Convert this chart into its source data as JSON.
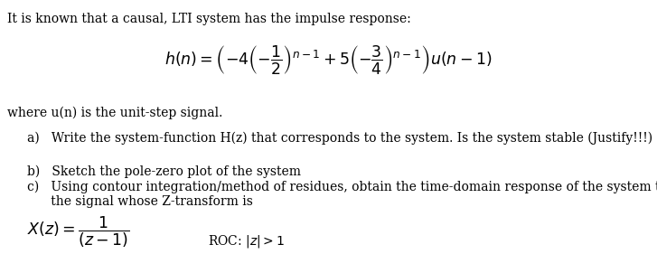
{
  "bg_color": "#ffffff",
  "text_color": "#000000",
  "figsize": [
    7.27,
    3.02
  ],
  "dpi": 100,
  "intro_text": "It is known that a causal, LTI system has the impulse response:",
  "where_text": "where u(n) is the unit-step signal.",
  "part_a": "a)   Write the system-function H(z) that corresponds to the system. Is the system stable (Justify!!!) ?",
  "part_b": "b)   Sketch the pole-zero plot of the system",
  "part_c_line1": "c)   Using contour integration/method of residues, obtain the time-domain response of the system to",
  "part_c_line2": "      the signal whose Z-transform is",
  "font_size_body": 10.0,
  "font_size_formula": 12.5
}
